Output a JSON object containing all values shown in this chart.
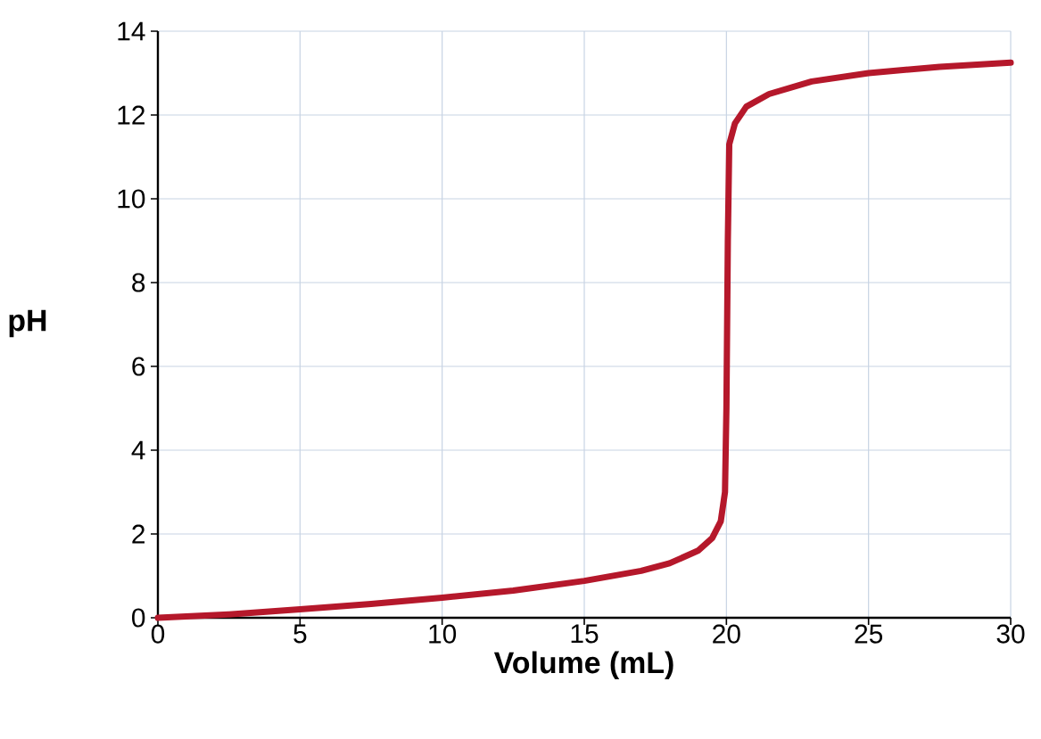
{
  "chart_data": {
    "type": "line",
    "xlabel": "Volume (mL)",
    "ylabel": "pH",
    "x": [
      0,
      2.5,
      5,
      7.5,
      10,
      12.5,
      15,
      17,
      18,
      19,
      19.5,
      19.8,
      19.95,
      20,
      20.05,
      20.1,
      20.3,
      20.7,
      21.5,
      23,
      25,
      27.5,
      30
    ],
    "series": [
      {
        "color": "#b5182b",
        "values": [
          0.0,
          0.08,
          0.2,
          0.33,
          0.48,
          0.65,
          0.88,
          1.12,
          1.3,
          1.6,
          1.9,
          2.3,
          3.0,
          5.0,
          9.0,
          11.3,
          11.8,
          12.2,
          12.5,
          12.8,
          13.0,
          13.15,
          13.25
        ]
      }
    ],
    "xlim": [
      0,
      30
    ],
    "ylim": [
      0,
      14
    ],
    "xticks": [
      0,
      5,
      10,
      15,
      20,
      25,
      30
    ],
    "yticks": [
      0,
      2,
      4,
      6,
      8,
      10,
      12,
      14
    ],
    "grid": true,
    "marker": "none",
    "line_style": "solid"
  }
}
